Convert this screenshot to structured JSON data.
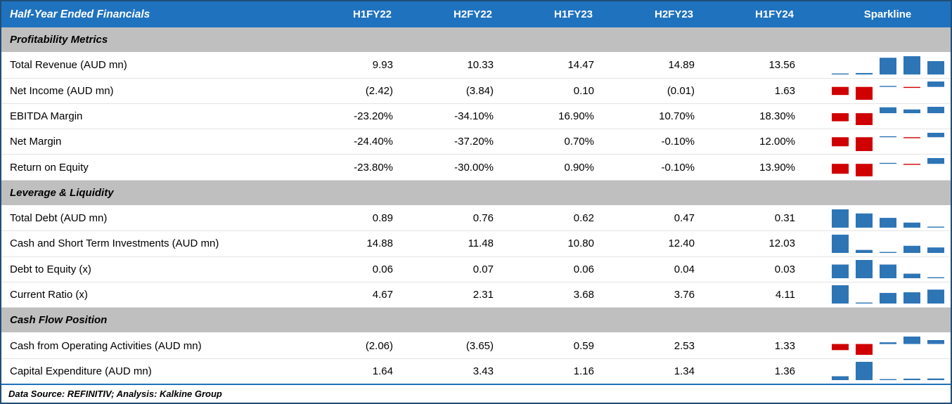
{
  "meta": {
    "footer": "Data Source: REFINITIV; Analysis: Kalkine Group"
  },
  "colors": {
    "header_bg": "#1F72BE",
    "section_bg": "#BFBFBF",
    "border": "#1F4E79",
    "positive": "#2E75B6",
    "negative": "#D00000"
  },
  "chart_data": {
    "type": "table",
    "title": "Half-Year Ended Financials",
    "columns": [
      "H1FY22",
      "H2FY22",
      "H1FY23",
      "H2FY23",
      "H1FY24"
    ],
    "sparkline_column": "Sparkline",
    "sparkline_type": "bar",
    "sections": [
      {
        "label": "Profitability Metrics",
        "rows": [
          {
            "label": "Total Revenue (AUD mn)",
            "display": [
              "9.93",
              "10.33",
              "14.47",
              "14.89",
              "13.56"
            ],
            "values": [
              9.93,
              10.33,
              14.47,
              14.89,
              13.56
            ]
          },
          {
            "label": "Net Income (AUD mn)",
            "display": [
              "(2.42)",
              "(3.84)",
              "0.10",
              "(0.01)",
              "1.63"
            ],
            "values": [
              -2.42,
              -3.84,
              0.1,
              -0.01,
              1.63
            ]
          },
          {
            "label": "EBITDA Margin",
            "display": [
              "-23.20%",
              "-34.10%",
              "16.90%",
              "10.70%",
              "18.30%"
            ],
            "values": [
              -23.2,
              -34.1,
              16.9,
              10.7,
              18.3
            ]
          },
          {
            "label": "Net Margin",
            "display": [
              "-24.40%",
              "-37.20%",
              "0.70%",
              "-0.10%",
              "12.00%"
            ],
            "values": [
              -24.4,
              -37.2,
              0.7,
              -0.1,
              12.0
            ]
          },
          {
            "label": "Return on Equity",
            "display": [
              "-23.80%",
              "-30.00%",
              "0.90%",
              "-0.10%",
              "13.90%"
            ],
            "values": [
              -23.8,
              -30.0,
              0.9,
              -0.1,
              13.9
            ]
          }
        ]
      },
      {
        "label": "Leverage & Liquidity",
        "rows": [
          {
            "label": "Total Debt (AUD mn)",
            "display": [
              "0.89",
              "0.76",
              "0.62",
              "0.47",
              "0.31"
            ],
            "values": [
              0.89,
              0.76,
              0.62,
              0.47,
              0.31
            ]
          },
          {
            "label": "Cash and Short Term Investments (AUD mn)",
            "display": [
              "14.88",
              "11.48",
              "10.80",
              "12.40",
              "12.03"
            ],
            "values": [
              14.88,
              11.48,
              10.8,
              12.4,
              12.03
            ]
          },
          {
            "label": "Debt to Equity (x)",
            "display": [
              "0.06",
              "0.07",
              "0.06",
              "0.04",
              "0.03"
            ],
            "values": [
              0.06,
              0.07,
              0.06,
              0.04,
              0.03
            ]
          },
          {
            "label": "Current Ratio (x)",
            "display": [
              "4.67",
              "2.31",
              "3.68",
              "3.76",
              "4.11"
            ],
            "values": [
              4.67,
              2.31,
              3.68,
              3.76,
              4.11
            ]
          }
        ]
      },
      {
        "label": "Cash Flow Position",
        "rows": [
          {
            "label": "Cash from Operating Activities (AUD mn)",
            "display": [
              "(2.06)",
              "(3.65)",
              "0.59",
              "2.53",
              "1.33"
            ],
            "values": [
              -2.06,
              -3.65,
              0.59,
              2.53,
              1.33
            ]
          },
          {
            "label": "Capital Expenditure (AUD mn)",
            "display": [
              "1.64",
              "3.43",
              "1.16",
              "1.34",
              "1.36"
            ],
            "values": [
              1.64,
              3.43,
              1.16,
              1.34,
              1.36
            ]
          }
        ]
      }
    ]
  }
}
